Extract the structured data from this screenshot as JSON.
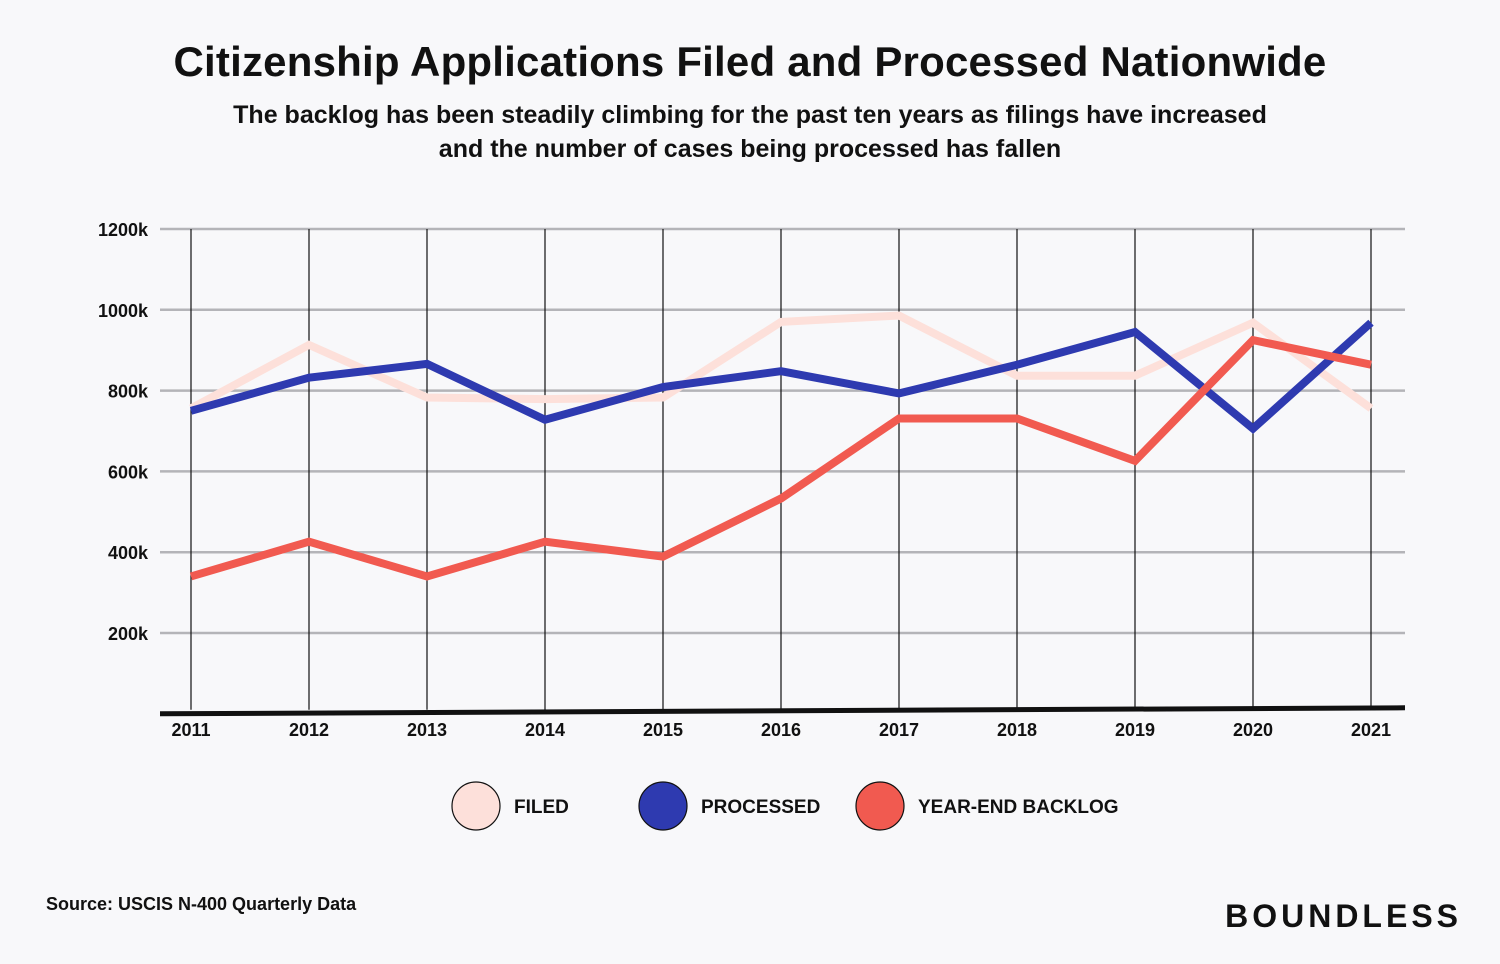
{
  "header": {
    "title": "Citizenship Applications Filed and Processed Nationwide",
    "subtitle_line1": "The backlog has been steadily climbing for the past ten years as filings have increased",
    "subtitle_line2": "and the number of cases being processed has fallen"
  },
  "footer": {
    "source": "Source: USCIS N-400 Quarterly Data",
    "brand": "BOUNDLESS"
  },
  "chart_data": {
    "type": "line",
    "title": "Citizenship Applications Filed and Processed Nationwide",
    "xlabel": "",
    "ylabel": "",
    "x": [
      "2011",
      "2012",
      "2013",
      "2014",
      "2015",
      "2016",
      "2017",
      "2018",
      "2019",
      "2020",
      "2021"
    ],
    "y_ticks": [
      200,
      400,
      600,
      800,
      1000,
      1200
    ],
    "y_tick_labels": [
      "200k",
      "400k",
      "600k",
      "800k",
      "1000k",
      "1200k"
    ],
    "ylim": [
      0,
      1200
    ],
    "grid": true,
    "legend_position": "bottom-center",
    "series": [
      {
        "name": "FILED",
        "color": "#fde0da",
        "values": [
          756,
          913,
          783,
          779,
          783,
          970,
          986,
          837,
          837,
          968,
          756
        ]
      },
      {
        "name": "PROCESSED",
        "color": "#2e3ab0",
        "values": [
          750,
          832,
          866,
          728,
          809,
          848,
          793,
          864,
          945,
          706,
          968
        ]
      },
      {
        "name": "YEAR-END BACKLOG",
        "color": "#f15a50",
        "values": [
          340,
          426,
          340,
          426,
          389,
          533,
          731,
          731,
          626,
          925,
          864
        ]
      }
    ]
  }
}
